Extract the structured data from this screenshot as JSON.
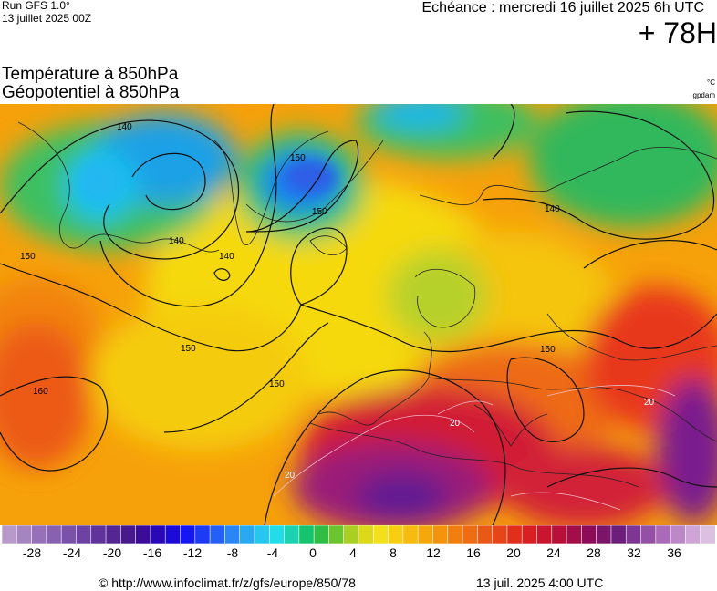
{
  "header": {
    "run_label": "Run GFS 1.0°",
    "run_date": "13 juillet 2025 00Z",
    "echeance": "Echéance : mercredi 16 juillet 2025 6h UTC",
    "lead_time": "+ 78H",
    "param_temperature": "Température à 850hPa",
    "param_geopotential": "Géopotentiel à 850hPa",
    "unit_temperature": "°C",
    "unit_geopotential": "gpdam"
  },
  "map": {
    "contour_labels": [
      "140",
      "140",
      "140",
      "140",
      "150",
      "150",
      "150",
      "150",
      "150",
      "150",
      "160",
      "20",
      "20",
      "20"
    ]
  },
  "colorbar": {
    "min": -32,
    "max": 40,
    "step": 2,
    "tick_labels": [
      "-28",
      "-24",
      "-20",
      "-16",
      "-12",
      "-8",
      "-4",
      "0",
      "4",
      "8",
      "12",
      "16",
      "20",
      "24",
      "28",
      "32",
      "36"
    ]
  },
  "footer": {
    "url": "© http://www.infoclimat.fr/z/gfs/europe/850/78",
    "timestamp": "13 juil. 2025  4:00 UTC"
  }
}
